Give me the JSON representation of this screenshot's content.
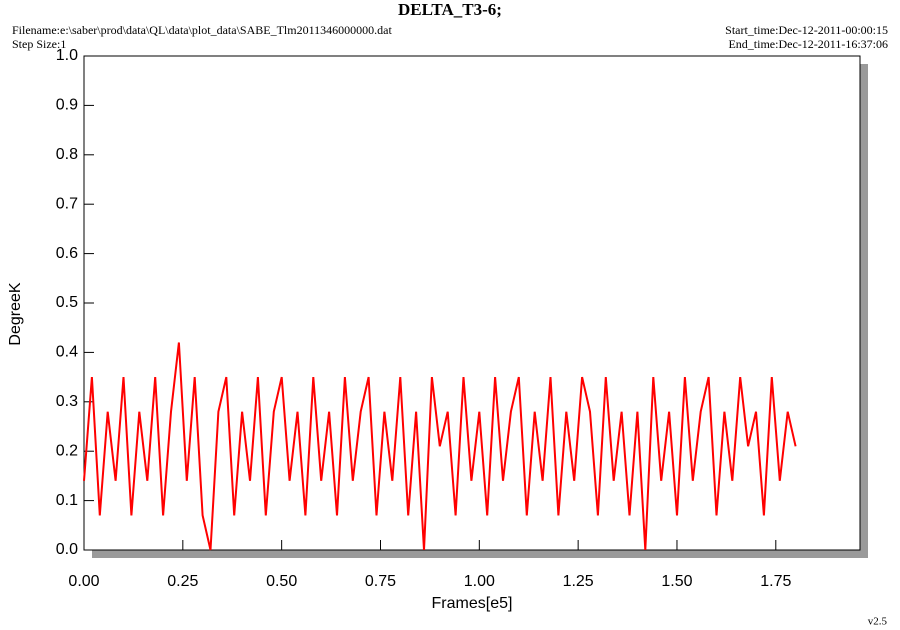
{
  "chart_data": {
    "type": "line",
    "title": "DELTA_T3-6;",
    "filename": "Filename:e:\\saber\\prod\\data\\QL\\data\\plot_data\\SABE_Tlm2011346000000.dat",
    "step_size": "Step Size:1",
    "start_time": "Start_time:Dec-12-2011-00:00:15",
    "end_time": "End_time:Dec-12-2011-16:37:06",
    "version": "v2.5",
    "xlabel": "Frames[e5]",
    "ylabel": "DegreeK",
    "xlim": [
      0,
      1.963
    ],
    "ylim": [
      0,
      1.0
    ],
    "xticks": [
      {
        "value": 0,
        "label": "0.00"
      },
      0.25,
      {
        "value": 0.5,
        "label": "0.50"
      },
      0.75,
      {
        "value": 1,
        "label": "1.00"
      },
      1.25,
      {
        "value": 1.5,
        "label": "1.50"
      },
      1.75
    ],
    "yticks": [
      {
        "value": 0,
        "label": "0.0"
      },
      0.1,
      0.2,
      0.3,
      0.4,
      0.5,
      0.6,
      0.7,
      0.8,
      0.9,
      {
        "value": 1,
        "label": "1.0"
      }
    ],
    "x": [
      0,
      0.02,
      0.04,
      0.06,
      0.08,
      0.1,
      0.12,
      0.14,
      0.16,
      0.18,
      0.2,
      0.22,
      0.24,
      0.26,
      0.28,
      0.3,
      0.32,
      0.34,
      0.36,
      0.38,
      0.4,
      0.42,
      0.44,
      0.46,
      0.48,
      0.5,
      0.52,
      0.54,
      0.56,
      0.58,
      0.6,
      0.62,
      0.64,
      0.66,
      0.68,
      0.7,
      0.72,
      0.74,
      0.76,
      0.78,
      0.8,
      0.82,
      0.84,
      0.86,
      0.88,
      0.9,
      0.92,
      0.94,
      0.96,
      0.98,
      1.0,
      1.02,
      1.04,
      1.06,
      1.08,
      1.1,
      1.12,
      1.14,
      1.16,
      1.18,
      1.2,
      1.22,
      1.24,
      1.26,
      1.28,
      1.3,
      1.32,
      1.34,
      1.36,
      1.38,
      1.4,
      1.42,
      1.44,
      1.46,
      1.48,
      1.5,
      1.52,
      1.54,
      1.56,
      1.58,
      1.6,
      1.62,
      1.64,
      1.66,
      1.68,
      1.7,
      1.72,
      1.74,
      1.76,
      1.78,
      1.8
    ],
    "series": [
      {
        "color": "#ff0000",
        "values": [
          0.14,
          0.35,
          0.07,
          0.28,
          0.14,
          0.35,
          0.07,
          0.28,
          0.14,
          0.35,
          0.07,
          0.28,
          0.42,
          0.14,
          0.35,
          0.07,
          0.0,
          0.28,
          0.35,
          0.07,
          0.28,
          0.14,
          0.35,
          0.07,
          0.28,
          0.35,
          0.14,
          0.28,
          0.07,
          0.35,
          0.14,
          0.28,
          0.07,
          0.35,
          0.14,
          0.28,
          0.35,
          0.07,
          0.28,
          0.14,
          0.35,
          0.07,
          0.28,
          0.0,
          0.35,
          0.21,
          0.28,
          0.07,
          0.35,
          0.14,
          0.28,
          0.07,
          0.35,
          0.14,
          0.28,
          0.35,
          0.07,
          0.28,
          0.14,
          0.35,
          0.07,
          0.28,
          0.14,
          0.35,
          0.28,
          0.07,
          0.35,
          0.14,
          0.28,
          0.07,
          0.28,
          0.0,
          0.35,
          0.14,
          0.28,
          0.07,
          0.35,
          0.14,
          0.28,
          0.35,
          0.07,
          0.28,
          0.14,
          0.35,
          0.21,
          0.28,
          0.07,
          0.35,
          0.14,
          0.28,
          0.21
        ]
      }
    ]
  }
}
